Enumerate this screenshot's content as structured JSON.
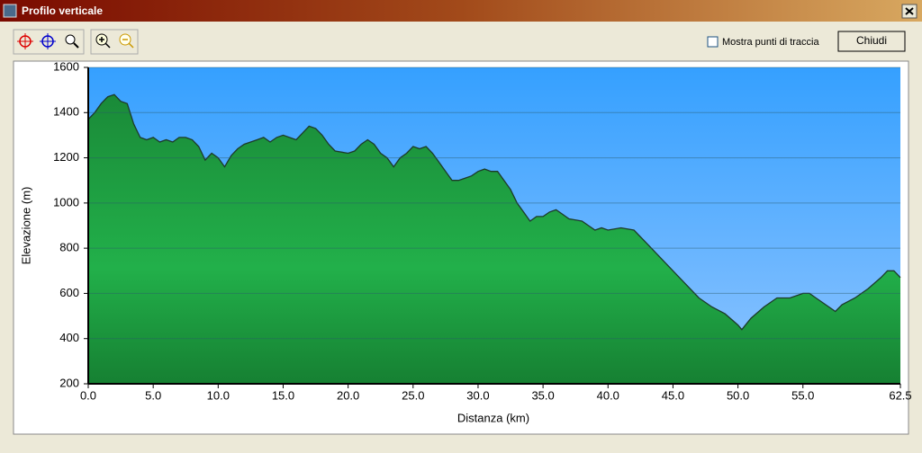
{
  "window": {
    "title": "Profilo verticale",
    "checkbox_label": "Mostra punti di traccia",
    "button": "Chiudi"
  },
  "chart_data": {
    "type": "area",
    "xlabel": "Distanza (km)",
    "ylabel": "Elevazione (m)",
    "color": "#22a845",
    "background": "#4aa8ff",
    "x": [
      0,
      0.5,
      1,
      1.5,
      2,
      2.5,
      3,
      3.5,
      4,
      4.5,
      5,
      5.5,
      6,
      6.5,
      7,
      7.5,
      8,
      8.5,
      9,
      9.5,
      10,
      10.5,
      11,
      11.5,
      12,
      13,
      13.5,
      14,
      14.5,
      15,
      16,
      16.5,
      17,
      17.5,
      18,
      18.5,
      19,
      20,
      20.5,
      21,
      21.5,
      22,
      22.5,
      23,
      23.5,
      24,
      24.5,
      25,
      25.5,
      26,
      26.5,
      27,
      27.5,
      28,
      28.5,
      29,
      29.5,
      30,
      30.5,
      31,
      31.5,
      32,
      32.5,
      33,
      33.5,
      34,
      34.5,
      35,
      35.5,
      36,
      36.5,
      37,
      38,
      38.5,
      39,
      39.5,
      40,
      41,
      42,
      43,
      44,
      45,
      46,
      47,
      48,
      49,
      50,
      50.3,
      51,
      52,
      53,
      54,
      55,
      55.5,
      56,
      57,
      57.5,
      58,
      59,
      60,
      61,
      61.5,
      62,
      62.5
    ],
    "values": [
      1370,
      1400,
      1440,
      1470,
      1480,
      1450,
      1440,
      1350,
      1290,
      1280,
      1290,
      1270,
      1280,
      1270,
      1290,
      1290,
      1280,
      1250,
      1190,
      1220,
      1200,
      1160,
      1210,
      1240,
      1260,
      1280,
      1290,
      1270,
      1290,
      1300,
      1280,
      1310,
      1340,
      1330,
      1300,
      1260,
      1230,
      1220,
      1230,
      1260,
      1280,
      1260,
      1220,
      1200,
      1160,
      1200,
      1220,
      1250,
      1240,
      1250,
      1220,
      1180,
      1140,
      1100,
      1100,
      1110,
      1120,
      1140,
      1150,
      1140,
      1140,
      1100,
      1060,
      1000,
      960,
      920,
      940,
      940,
      960,
      970,
      950,
      930,
      920,
      900,
      880,
      890,
      880,
      890,
      880,
      820,
      760,
      700,
      640,
      580,
      540,
      510,
      460,
      440,
      490,
      540,
      580,
      580,
      600,
      600,
      580,
      540,
      520,
      550,
      580,
      620,
      670,
      700,
      700,
      670
    ],
    "xlim": [
      0,
      62.5
    ],
    "ylim": [
      200,
      1600
    ],
    "xticks": [
      {
        "value": 0,
        "label": "0.0"
      },
      {
        "value": 5,
        "label": "5.0"
      },
      {
        "value": 10,
        "label": "10.0"
      },
      {
        "value": 15,
        "label": "15.0"
      },
      {
        "value": 20,
        "label": "20.0"
      },
      {
        "value": 25,
        "label": "25.0"
      },
      {
        "value": 30,
        "label": "30.0"
      },
      {
        "value": 35,
        "label": "35.0"
      },
      {
        "value": 40,
        "label": "40.0"
      },
      {
        "value": 45,
        "label": "45.0"
      },
      {
        "value": 50,
        "label": "50.0"
      },
      {
        "value": 55,
        "label": "55.0"
      },
      62.5
    ],
    "yticks": [
      200,
      400,
      600,
      800,
      1000,
      1200,
      1400,
      1600
    ],
    "grid": true
  }
}
